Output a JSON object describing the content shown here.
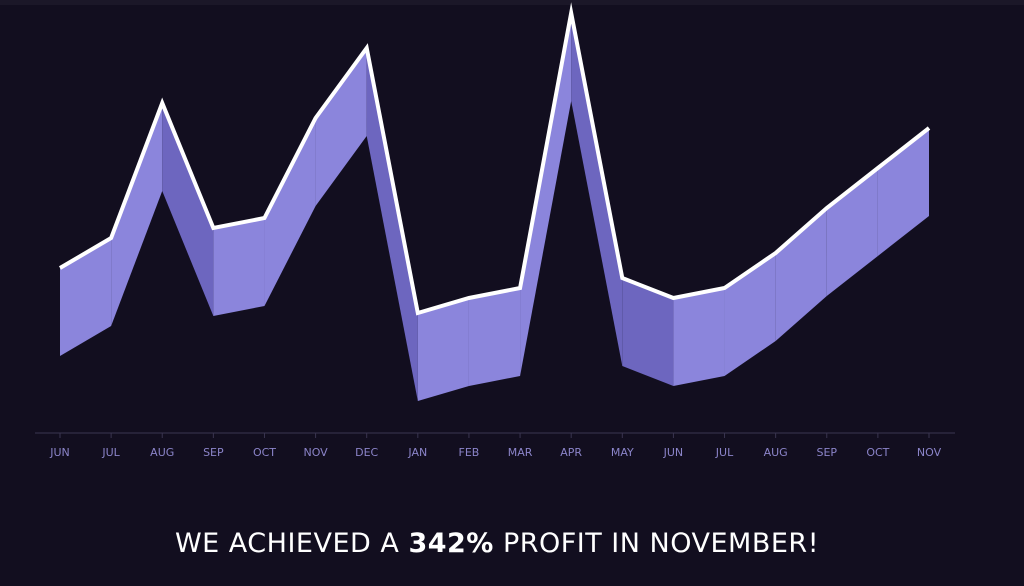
{
  "colors": {
    "background": "#120e1f",
    "band_light": "#8b85dc",
    "band_dark": "#6d66bf",
    "line": "#ffffff",
    "axis": "#3a3550",
    "tick_label": "#8b84c9"
  },
  "headline": {
    "prefix": "WE ACHIEVED A ",
    "highlight": "342%",
    "suffix": " PROFIT IN NOVEMBER!"
  },
  "chart_data": {
    "type": "area",
    "categories": [
      "JUN",
      "JUL",
      "AUG",
      "SEP",
      "OCT",
      "NOV",
      "DEC",
      "JAN",
      "FEB",
      "MAR",
      "APR",
      "MAY",
      "JUN",
      "JUL",
      "AUG",
      "SEP",
      "OCT",
      "NOV"
    ],
    "series": [
      {
        "values": [
          165,
          195,
          330,
          205,
          215,
          315,
          385,
          120,
          135,
          145,
          420,
          155,
          135,
          145,
          180,
          225,
          265,
          305
        ]
      },
      {
        "values": [
          77,
          107,
          242,
          117,
          127,
          227,
          297,
          32,
          47,
          57,
          332,
          67,
          47,
          57,
          92,
          137,
          177,
          217
        ]
      }
    ],
    "ylim": [
      0,
      430
    ],
    "grid": false,
    "legend": "none",
    "title": "",
    "xlabel": "",
    "ylabel": ""
  }
}
